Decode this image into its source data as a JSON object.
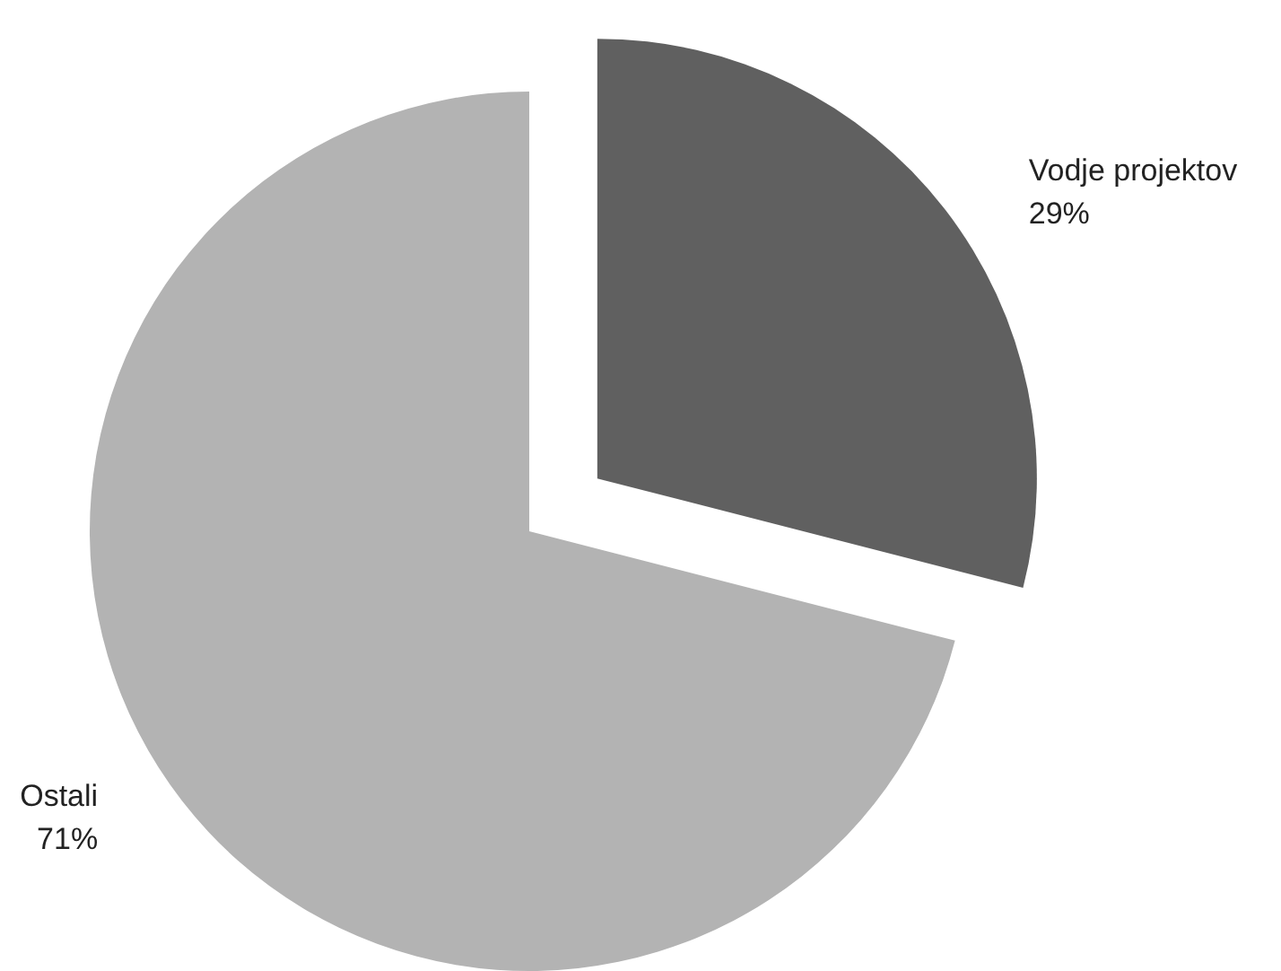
{
  "chart_data": {
    "type": "pie",
    "categories": [
      "Vodje projektov",
      "Ostali"
    ],
    "values": [
      29,
      71
    ],
    "colors": [
      "#606060",
      "#b3b3b3"
    ],
    "value_labels": [
      "29%",
      "71%"
    ],
    "legend": false
  }
}
